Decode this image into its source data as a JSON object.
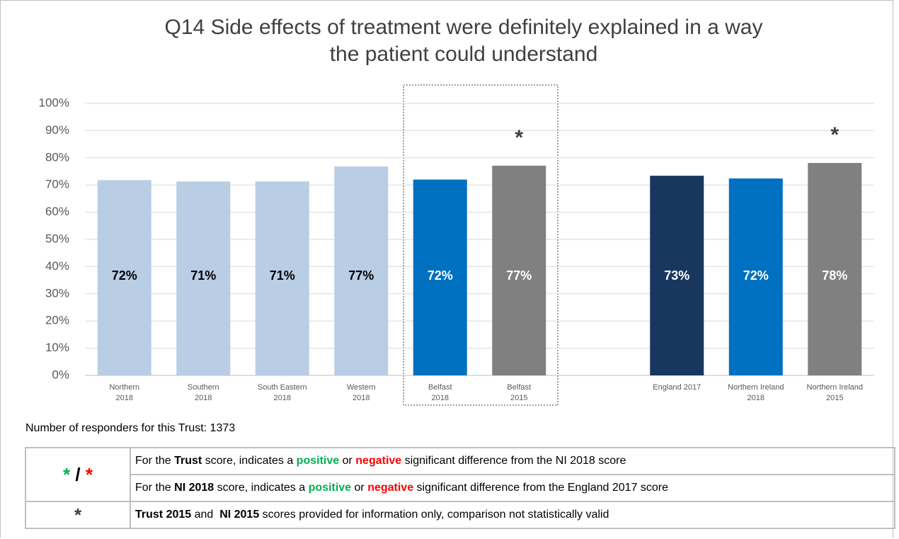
{
  "chart_data": {
    "type": "bar",
    "title": [
      "Q14 Side effects of treatment were definitely explained in a way",
      "the patient could understand"
    ],
    "categories": [
      [
        "Northern",
        "2018"
      ],
      [
        "Southern",
        "2018"
      ],
      [
        "South Eastern",
        "2018"
      ],
      [
        "Western",
        "2018"
      ],
      [
        "Belfast",
        "2018"
      ],
      [
        "Belfast",
        "2015"
      ],
      null,
      [
        "England 2017"
      ],
      [
        "Northern Ireland",
        "2018"
      ],
      [
        "Northern Ireland",
        "2015"
      ]
    ],
    "values": [
      71.8,
      71.3,
      71.3,
      76.8,
      72.0,
      77.1,
      null,
      73.4,
      72.4,
      78.1
    ],
    "value_labels": [
      "72%",
      "71%",
      "71%",
      "77%",
      "72%",
      "77%",
      null,
      "73%",
      "72%",
      "78%"
    ],
    "colors": [
      "#b9cde5",
      "#b9cde5",
      "#b9cde5",
      "#b9cde5",
      "#0070c0",
      "#808080",
      null,
      "#17375e",
      "#0070c0",
      "#808080"
    ],
    "markers": [
      null,
      null,
      null,
      null,
      null,
      "*",
      null,
      null,
      null,
      "*"
    ],
    "ylim": [
      0,
      100
    ],
    "yticks": [
      {
        "value": 0,
        "label": "0%"
      },
      {
        "value": 10,
        "label": "10%"
      },
      {
        "value": 20,
        "label": "20%"
      },
      {
        "value": 30,
        "label": "30%"
      },
      {
        "value": 40,
        "label": "40%"
      },
      {
        "value": 50,
        "label": "50%"
      },
      {
        "value": 60,
        "label": "60%"
      },
      {
        "value": 70,
        "label": "70%"
      },
      {
        "value": 80,
        "label": "80%"
      },
      {
        "value": 90,
        "label": "90%"
      },
      {
        "value": 100,
        "label": "100%"
      }
    ],
    "grid": true
  },
  "responders": "Number of responders for this Trust: 1373",
  "legend": {
    "symbol_1": [
      {
        "text": "*",
        "color": "#00b050"
      },
      {
        "text": " / ",
        "color": "#000000"
      },
      {
        "text": "*",
        "color": "#ff0000"
      }
    ],
    "row_1": [
      {
        "text": "For the "
      },
      {
        "text": "Trust",
        "bold": true
      },
      {
        "text": " score, indicates a "
      },
      {
        "text": "positive",
        "bold": true,
        "color": "#00b050"
      },
      {
        "text": " or "
      },
      {
        "text": "negative",
        "bold": true,
        "color": "#ff0000"
      },
      {
        "text": " significant difference from the NI 2018 score"
      }
    ],
    "row_2": [
      {
        "text": "For the "
      },
      {
        "text": "NI 2018",
        "bold": true
      },
      {
        "text": " score, indicates a "
      },
      {
        "text": "positive",
        "bold": true,
        "color": "#00b050"
      },
      {
        "text": " or "
      },
      {
        "text": "negative",
        "bold": true,
        "color": "#ff0000"
      },
      {
        "text": " significant difference from the England 2017 score"
      }
    ],
    "symbol_2": [
      {
        "text": "*",
        "color": "#404040"
      }
    ],
    "row_3": [
      {
        "text": "Trust 2015",
        "bold": true
      },
      {
        "text": " and  "
      },
      {
        "text": "NI 2015",
        "bold": true
      },
      {
        "text": " scores provided for information only, comparison not statistically valid"
      }
    ]
  }
}
